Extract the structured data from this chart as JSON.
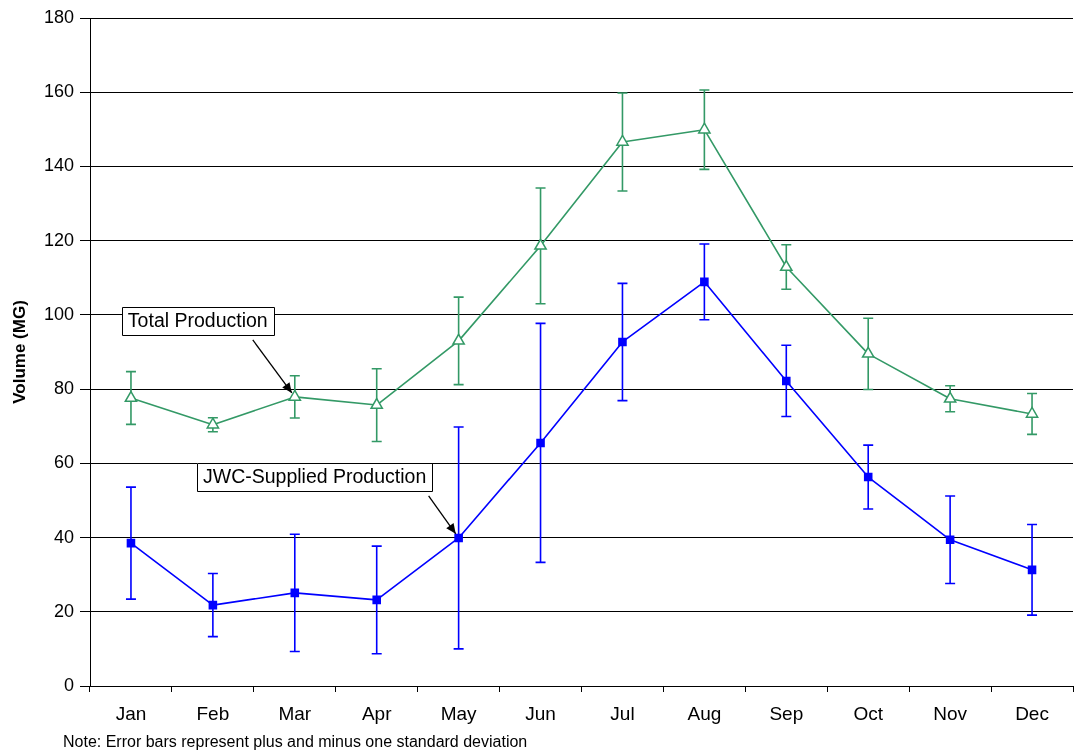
{
  "chart_data": {
    "type": "line",
    "ylabel": "Volume (MG)",
    "categories": [
      "Jan",
      "Feb",
      "Mar",
      "Apr",
      "May",
      "Jun",
      "Jul",
      "Aug",
      "Sep",
      "Oct",
      "Nov",
      "Dec"
    ],
    "ylim": [
      0,
      180
    ],
    "yticks": [
      0,
      20,
      40,
      60,
      80,
      100,
      120,
      140,
      160,
      180
    ],
    "grid": "y",
    "annotations": [
      "Note: Error bars represent plus and minus one standard deviation"
    ],
    "series": [
      {
        "name": "Total Production",
        "color": "#339966",
        "marker": "triangle",
        "values": [
          77.6,
          70.4,
          77.9,
          75.7,
          93.0,
          118.6,
          146.6,
          149.9,
          112.9,
          89.5,
          77.4,
          73.3
        ],
        "errors": [
          7.1,
          1.9,
          5.7,
          9.8,
          11.8,
          15.6,
          13.2,
          10.7,
          6.0,
          9.6,
          3.5,
          5.5
        ]
      },
      {
        "name": "JWC-Supplied Production",
        "color": "#0000ff",
        "marker": "square",
        "values": [
          38.5,
          21.8,
          25.1,
          23.2,
          39.9,
          65.5,
          92.7,
          108.9,
          82.2,
          56.3,
          39.4,
          31.3
        ],
        "errors": [
          15.1,
          8.5,
          15.8,
          14.5,
          29.9,
          32.2,
          15.8,
          10.2,
          9.6,
          8.6,
          11.8,
          12.2
        ]
      }
    ]
  }
}
